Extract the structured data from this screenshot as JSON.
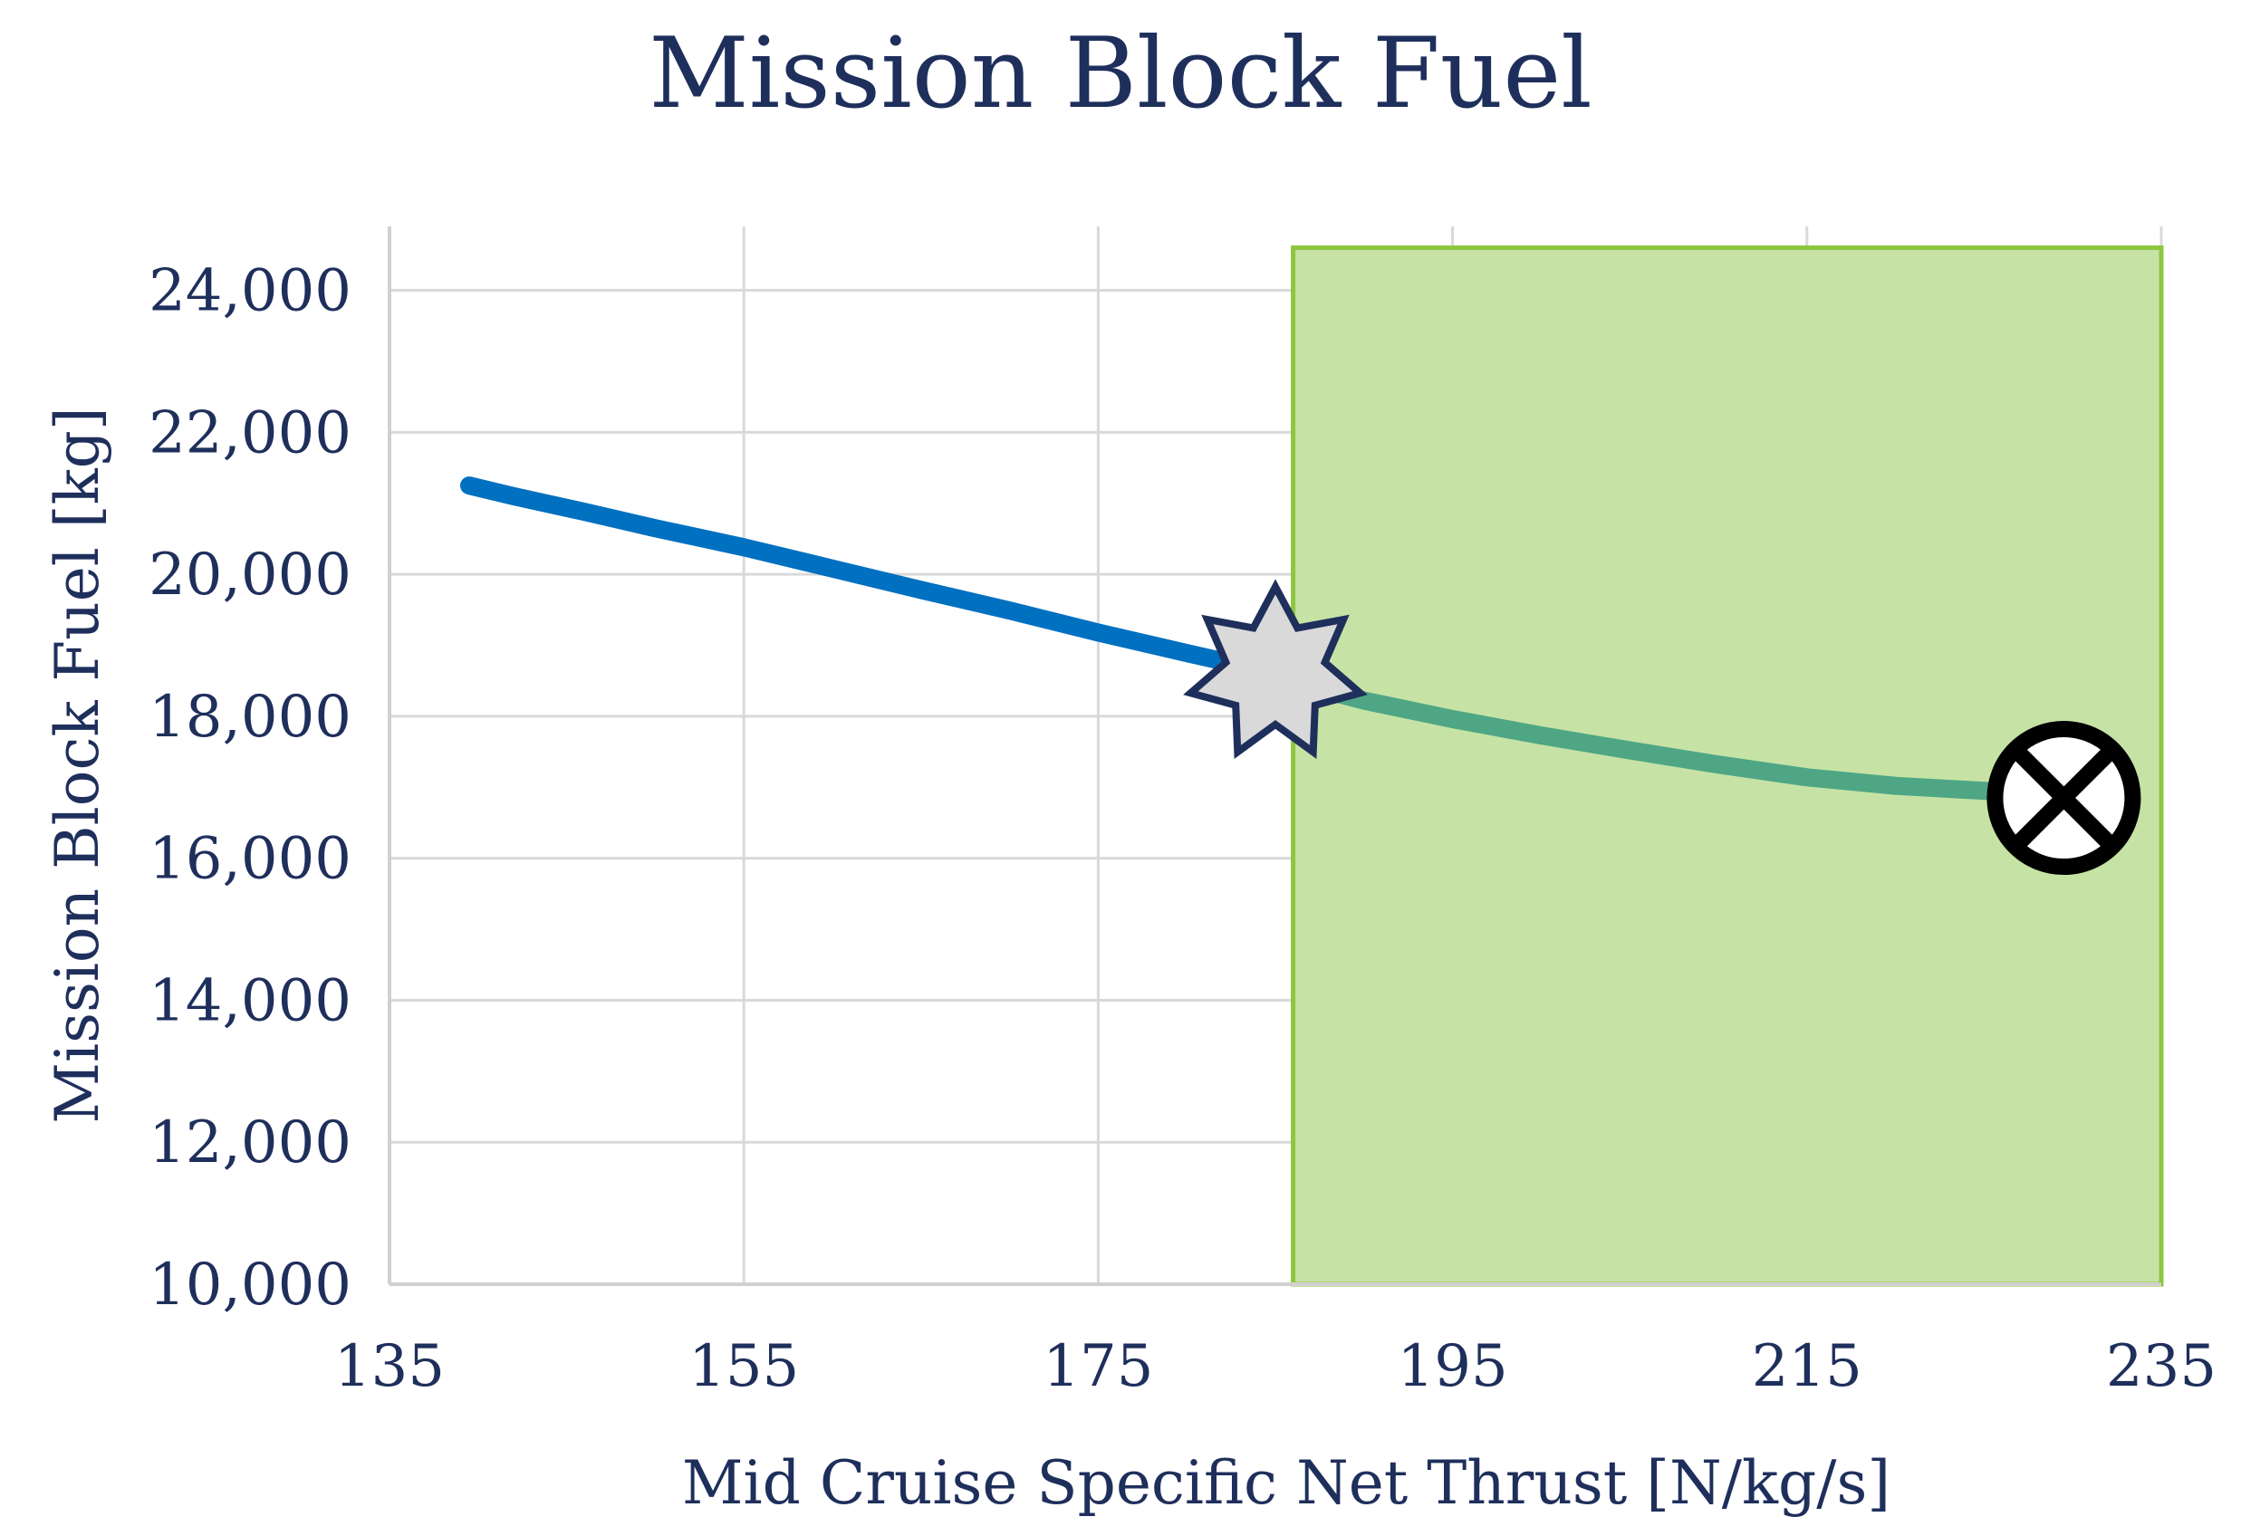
{
  "chart_data": {
    "type": "line",
    "title": "Mission Block Fuel",
    "xlabel": "Mid Cruise Specific Net Thrust [N/kg/s]",
    "ylabel": "Mission Block Fuel [kg]",
    "xlim": [
      135,
      235
    ],
    "ylim": [
      10000,
      25000
    ],
    "x_ticks": [
      "135",
      "155",
      "175",
      "195",
      "215",
      "235"
    ],
    "y_ticks": [
      "10,000",
      "12,000",
      "14,000",
      "16,000",
      "18,000",
      "20,000",
      "22,000",
      "24,000"
    ],
    "x_tick_values": [
      135,
      155,
      175,
      195,
      215,
      235
    ],
    "y_tick_values": [
      10000,
      12000,
      14000,
      16000,
      18000,
      20000,
      22000,
      24000
    ],
    "grid": true,
    "shaded_region": {
      "x": [
        186,
        235
      ],
      "y": [
        10000,
        24600
      ],
      "fill": "#c6e3a5",
      "stroke": "#8dc63f"
    },
    "series": [
      {
        "color": "#0070c0",
        "x": [
          139.5,
          142,
          146,
          150,
          155,
          160,
          165,
          170,
          175,
          180,
          183,
          185
        ],
        "y": [
          21250,
          21100,
          20880,
          20650,
          20380,
          20080,
          19780,
          19490,
          19180,
          18890,
          18720,
          18600
        ]
      },
      {
        "color": "#4ea685",
        "x": [
          185,
          188,
          190,
          195,
          200,
          205,
          210,
          215,
          220,
          225,
          229
        ],
        "y": [
          18600,
          18350,
          18220,
          17960,
          17730,
          17520,
          17320,
          17140,
          17020,
          16950,
          16880
        ]
      }
    ],
    "markers": [
      {
        "shape": "star",
        "x": 185,
        "y": 18600,
        "fill": "#d9d9d9",
        "stroke": "#1f2f5c"
      },
      {
        "shape": "circle-x",
        "x": 229.5,
        "y": 16850,
        "fill": "#ffffff",
        "stroke": "#000000"
      }
    ]
  }
}
